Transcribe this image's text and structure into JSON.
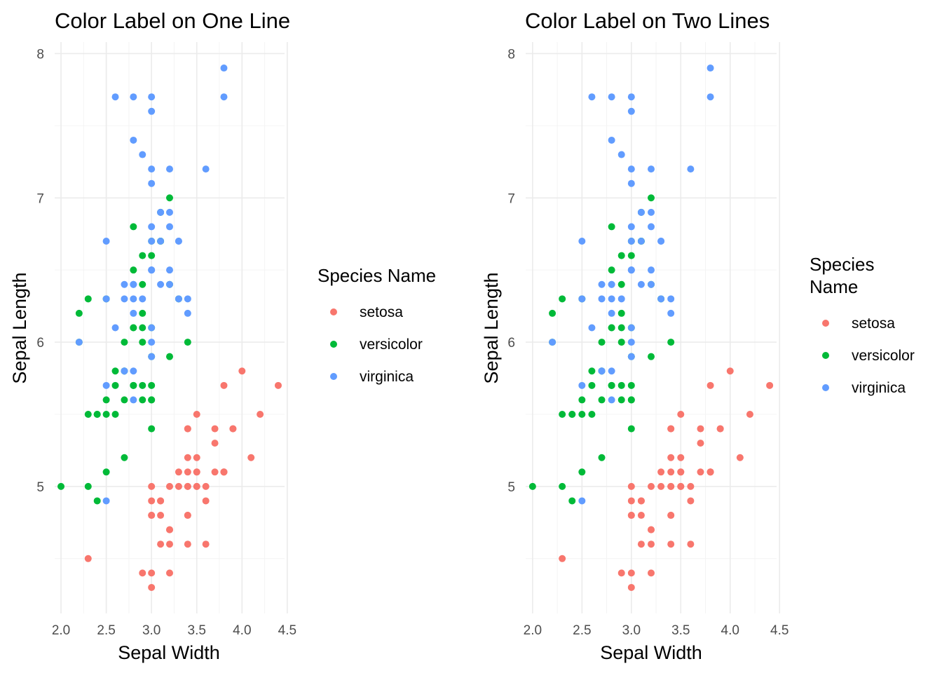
{
  "colors": {
    "setosa": "#F8766D",
    "versicolor": "#00BA38",
    "virginica": "#619CFF"
  },
  "chart_data": [
    {
      "type": "scatter",
      "title": "Color Label on One Line",
      "xlabel": "Sepal Width",
      "ylabel": "Sepal Length",
      "xlim": [
        1.93,
        4.47
      ],
      "ylim": [
        4.12,
        8.08
      ],
      "xticks": [
        "2.0",
        "2.5",
        "3.0",
        "3.5",
        "4.0",
        "4.5"
      ],
      "yticks": [
        "5",
        "6",
        "7",
        "8"
      ],
      "grid": true,
      "legend": {
        "title_lines": [
          "Species Name"
        ],
        "placement": "right",
        "entries": [
          "setosa",
          "versicolor",
          "virginica"
        ]
      }
    },
    {
      "type": "scatter",
      "title": "Color Label on Two Lines",
      "xlabel": "Sepal Width",
      "ylabel": "Sepal Length",
      "xlim": [
        1.93,
        4.47
      ],
      "ylim": [
        4.12,
        8.08
      ],
      "xticks": [
        "2.0",
        "2.5",
        "3.0",
        "3.5",
        "4.0",
        "4.5"
      ],
      "yticks": [
        "5",
        "6",
        "7",
        "8"
      ],
      "grid": true,
      "legend": {
        "title_lines": [
          "Species",
          "Name"
        ],
        "placement": "right",
        "entries": [
          "setosa",
          "versicolor",
          "virginica"
        ]
      }
    }
  ],
  "points": {
    "setosa": [
      [
        3.5,
        5.1
      ],
      [
        3.0,
        4.9
      ],
      [
        3.2,
        4.7
      ],
      [
        3.1,
        4.6
      ],
      [
        3.6,
        5.0
      ],
      [
        3.9,
        5.4
      ],
      [
        3.4,
        4.6
      ],
      [
        3.4,
        5.0
      ],
      [
        2.9,
        4.4
      ],
      [
        3.1,
        4.9
      ],
      [
        3.7,
        5.4
      ],
      [
        3.4,
        4.8
      ],
      [
        3.0,
        4.8
      ],
      [
        3.0,
        4.3
      ],
      [
        4.0,
        5.8
      ],
      [
        4.4,
        5.7
      ],
      [
        3.9,
        5.4
      ],
      [
        3.5,
        5.1
      ],
      [
        3.8,
        5.7
      ],
      [
        3.8,
        5.1
      ],
      [
        3.4,
        5.4
      ],
      [
        3.7,
        5.1
      ],
      [
        3.6,
        4.6
      ],
      [
        3.3,
        5.1
      ],
      [
        3.4,
        4.8
      ],
      [
        3.0,
        5.0
      ],
      [
        3.4,
        5.0
      ],
      [
        3.5,
        5.2
      ],
      [
        3.4,
        5.2
      ],
      [
        3.2,
        4.7
      ],
      [
        3.1,
        4.8
      ],
      [
        3.4,
        5.4
      ],
      [
        4.1,
        5.2
      ],
      [
        4.2,
        5.5
      ],
      [
        3.1,
        4.9
      ],
      [
        3.2,
        5.0
      ],
      [
        3.5,
        5.5
      ],
      [
        3.6,
        4.9
      ],
      [
        3.0,
        4.4
      ],
      [
        3.4,
        5.1
      ],
      [
        3.5,
        5.0
      ],
      [
        2.3,
        4.5
      ],
      [
        3.2,
        4.4
      ],
      [
        3.5,
        5.0
      ],
      [
        3.8,
        5.1
      ],
      [
        3.0,
        4.8
      ],
      [
        3.8,
        5.1
      ],
      [
        3.2,
        4.6
      ],
      [
        3.7,
        5.3
      ],
      [
        3.3,
        5.0
      ]
    ],
    "versicolor": [
      [
        3.2,
        7.0
      ],
      [
        3.2,
        6.4
      ],
      [
        3.1,
        6.9
      ],
      [
        2.3,
        5.5
      ],
      [
        2.8,
        6.5
      ],
      [
        2.8,
        5.7
      ],
      [
        3.3,
        6.3
      ],
      [
        2.4,
        4.9
      ],
      [
        2.9,
        6.6
      ],
      [
        2.7,
        5.2
      ],
      [
        2.0,
        5.0
      ],
      [
        3.0,
        5.9
      ],
      [
        2.2,
        6.0
      ],
      [
        2.9,
        6.1
      ],
      [
        2.9,
        5.6
      ],
      [
        3.1,
        6.7
      ],
      [
        3.0,
        5.6
      ],
      [
        2.7,
        5.8
      ],
      [
        2.2,
        6.2
      ],
      [
        2.5,
        5.6
      ],
      [
        3.2,
        5.9
      ],
      [
        2.8,
        6.1
      ],
      [
        2.5,
        6.3
      ],
      [
        2.8,
        6.1
      ],
      [
        2.9,
        6.4
      ],
      [
        3.0,
        6.6
      ],
      [
        2.8,
        6.8
      ],
      [
        3.0,
        6.7
      ],
      [
        2.9,
        6.0
      ],
      [
        2.6,
        5.7
      ],
      [
        2.4,
        5.5
      ],
      [
        2.4,
        5.5
      ],
      [
        2.7,
        5.8
      ],
      [
        2.7,
        6.0
      ],
      [
        3.0,
        5.4
      ],
      [
        3.4,
        6.0
      ],
      [
        3.1,
        6.7
      ],
      [
        2.3,
        6.3
      ],
      [
        3.0,
        5.6
      ],
      [
        2.5,
        5.5
      ],
      [
        2.6,
        5.5
      ],
      [
        3.0,
        6.1
      ],
      [
        2.6,
        5.8
      ],
      [
        2.3,
        5.0
      ],
      [
        2.7,
        5.6
      ],
      [
        3.0,
        5.7
      ],
      [
        2.9,
        5.7
      ],
      [
        2.9,
        6.2
      ],
      [
        2.5,
        5.1
      ],
      [
        2.8,
        5.7
      ]
    ],
    "virginica": [
      [
        3.3,
        6.3
      ],
      [
        2.7,
        5.8
      ],
      [
        3.0,
        7.1
      ],
      [
        2.9,
        6.3
      ],
      [
        3.0,
        6.5
      ],
      [
        3.0,
        7.6
      ],
      [
        2.5,
        4.9
      ],
      [
        2.9,
        7.3
      ],
      [
        2.5,
        6.7
      ],
      [
        3.6,
        7.2
      ],
      [
        3.2,
        6.5
      ],
      [
        2.7,
        6.4
      ],
      [
        3.0,
        6.8
      ],
      [
        2.5,
        5.7
      ],
      [
        2.8,
        5.8
      ],
      [
        3.2,
        6.4
      ],
      [
        3.0,
        6.5
      ],
      [
        3.8,
        7.7
      ],
      [
        2.6,
        7.7
      ],
      [
        2.2,
        6.0
      ],
      [
        3.2,
        6.9
      ],
      [
        2.8,
        5.6
      ],
      [
        2.8,
        7.7
      ],
      [
        2.7,
        6.3
      ],
      [
        3.3,
        6.7
      ],
      [
        3.2,
        7.2
      ],
      [
        2.8,
        6.2
      ],
      [
        3.0,
        6.1
      ],
      [
        2.8,
        6.4
      ],
      [
        3.0,
        7.2
      ],
      [
        2.8,
        7.4
      ],
      [
        3.8,
        7.9
      ],
      [
        2.8,
        6.4
      ],
      [
        2.8,
        6.3
      ],
      [
        2.6,
        6.1
      ],
      [
        3.0,
        7.7
      ],
      [
        3.4,
        6.3
      ],
      [
        3.1,
        6.4
      ],
      [
        3.0,
        6.0
      ],
      [
        3.1,
        6.9
      ],
      [
        3.1,
        6.7
      ],
      [
        3.1,
        6.9
      ],
      [
        2.7,
        5.8
      ],
      [
        3.2,
        6.8
      ],
      [
        3.3,
        6.7
      ],
      [
        3.0,
        6.7
      ],
      [
        2.5,
        6.3
      ],
      [
        3.0,
        6.5
      ],
      [
        3.4,
        6.2
      ],
      [
        3.0,
        5.9
      ]
    ]
  }
}
